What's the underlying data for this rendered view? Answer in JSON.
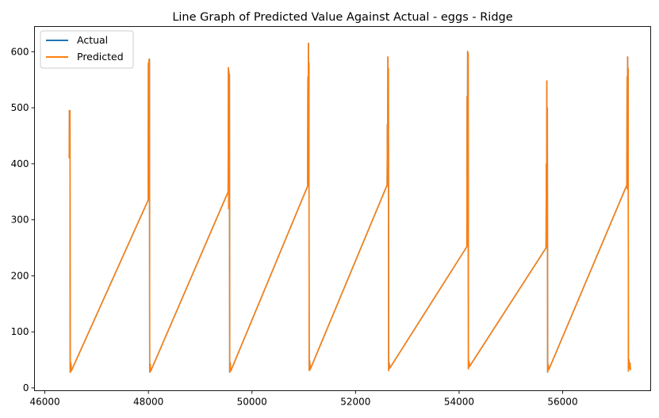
{
  "chart_data": {
    "type": "line",
    "title": "Line Graph of Predicted Value Against Actual - eggs  - Ridge",
    "xlabel": "",
    "ylabel": "",
    "xlim": [
      45800,
      57700
    ],
    "ylim": [
      -5,
      645
    ],
    "xticks": [
      46000,
      48000,
      50000,
      52000,
      54000,
      56000
    ],
    "yticks": [
      0,
      100,
      200,
      300,
      400,
      500,
      600
    ],
    "grid": false,
    "legend": "top-left",
    "series": [
      {
        "name": "Actual",
        "color": "#1f77b4",
        "points": [
          [
            46470,
            410
          ],
          [
            46475,
            495
          ],
          [
            46480,
            412
          ],
          [
            46485,
            495
          ],
          [
            46490,
            28
          ],
          [
            46500,
            45
          ],
          [
            46510,
            30
          ],
          [
            47995,
            335
          ],
          [
            48000,
            580
          ],
          [
            48005,
            340
          ],
          [
            48010,
            585
          ],
          [
            48015,
            360
          ],
          [
            48020,
            587
          ],
          [
            48025,
            28
          ],
          [
            48035,
            42
          ],
          [
            48045,
            30
          ],
          [
            49540,
            350
          ],
          [
            49545,
            570
          ],
          [
            49550,
            320
          ],
          [
            49555,
            565
          ],
          [
            49560,
            330
          ],
          [
            49565,
            560
          ],
          [
            49570,
            28
          ],
          [
            49580,
            45
          ],
          [
            49590,
            30
          ],
          [
            51075,
            360
          ],
          [
            51080,
            555
          ],
          [
            51085,
            410
          ],
          [
            51090,
            615
          ],
          [
            51095,
            370
          ],
          [
            51100,
            580
          ],
          [
            51105,
            31
          ],
          [
            51115,
            48
          ],
          [
            51125,
            33
          ],
          [
            52610,
            362
          ],
          [
            52615,
            470
          ],
          [
            52620,
            380
          ],
          [
            52625,
            590
          ],
          [
            52630,
            360
          ],
          [
            52635,
            570
          ],
          [
            52640,
            31
          ],
          [
            52650,
            45
          ],
          [
            52660,
            35
          ],
          [
            54150,
            252
          ],
          [
            54155,
            520
          ],
          [
            54160,
            260
          ],
          [
            54165,
            600
          ],
          [
            54170,
            255
          ],
          [
            54175,
            598
          ],
          [
            54180,
            34
          ],
          [
            54190,
            48
          ],
          [
            54200,
            38
          ],
          [
            55680,
            250
          ],
          [
            55685,
            400
          ],
          [
            55690,
            252
          ],
          [
            55695,
            548
          ],
          [
            55700,
            255
          ],
          [
            55705,
            500
          ],
          [
            55710,
            28
          ],
          [
            55720,
            42
          ],
          [
            55730,
            32
          ],
          [
            57240,
            362
          ],
          [
            57245,
            555
          ],
          [
            57250,
            355
          ],
          [
            57255,
            590
          ],
          [
            57260,
            358
          ],
          [
            57265,
            570
          ],
          [
            57270,
            30
          ],
          [
            57280,
            50
          ],
          [
            57290,
            35
          ],
          [
            57300,
            45
          ],
          [
            57310,
            32
          ]
        ]
      },
      {
        "name": "Predicted",
        "color": "#ff7f0e",
        "points": [
          [
            46470,
            410
          ],
          [
            46475,
            495
          ],
          [
            46480,
            412
          ],
          [
            46485,
            495
          ],
          [
            46490,
            28
          ],
          [
            46500,
            45
          ],
          [
            46510,
            30
          ],
          [
            47995,
            335
          ],
          [
            48000,
            580
          ],
          [
            48005,
            340
          ],
          [
            48010,
            585
          ],
          [
            48015,
            360
          ],
          [
            48020,
            587
          ],
          [
            48025,
            28
          ],
          [
            48035,
            42
          ],
          [
            48045,
            30
          ],
          [
            49540,
            350
          ],
          [
            49545,
            572
          ],
          [
            49550,
            320
          ],
          [
            49555,
            565
          ],
          [
            49560,
            330
          ],
          [
            49565,
            560
          ],
          [
            49570,
            28
          ],
          [
            49580,
            45
          ],
          [
            49590,
            30
          ],
          [
            51075,
            360
          ],
          [
            51080,
            555
          ],
          [
            51085,
            410
          ],
          [
            51090,
            615
          ],
          [
            51095,
            370
          ],
          [
            51100,
            580
          ],
          [
            51105,
            31
          ],
          [
            51115,
            48
          ],
          [
            51125,
            33
          ],
          [
            52610,
            362
          ],
          [
            52615,
            470
          ],
          [
            52620,
            380
          ],
          [
            52625,
            591
          ],
          [
            52630,
            360
          ],
          [
            52635,
            570
          ],
          [
            52640,
            31
          ],
          [
            52650,
            45
          ],
          [
            52660,
            35
          ],
          [
            54150,
            252
          ],
          [
            54155,
            520
          ],
          [
            54160,
            260
          ],
          [
            54165,
            601
          ],
          [
            54170,
            255
          ],
          [
            54175,
            598
          ],
          [
            54180,
            34
          ],
          [
            54190,
            48
          ],
          [
            54200,
            38
          ],
          [
            55680,
            250
          ],
          [
            55685,
            400
          ],
          [
            55690,
            252
          ],
          [
            55695,
            548
          ],
          [
            55700,
            255
          ],
          [
            55705,
            500
          ],
          [
            55710,
            28
          ],
          [
            55720,
            42
          ],
          [
            55730,
            32
          ],
          [
            57240,
            362
          ],
          [
            57245,
            555
          ],
          [
            57250,
            355
          ],
          [
            57255,
            591
          ],
          [
            57260,
            358
          ],
          [
            57265,
            570
          ],
          [
            57270,
            30
          ],
          [
            57280,
            50
          ],
          [
            57290,
            35
          ],
          [
            57300,
            45
          ],
          [
            57310,
            32
          ]
        ]
      }
    ]
  }
}
